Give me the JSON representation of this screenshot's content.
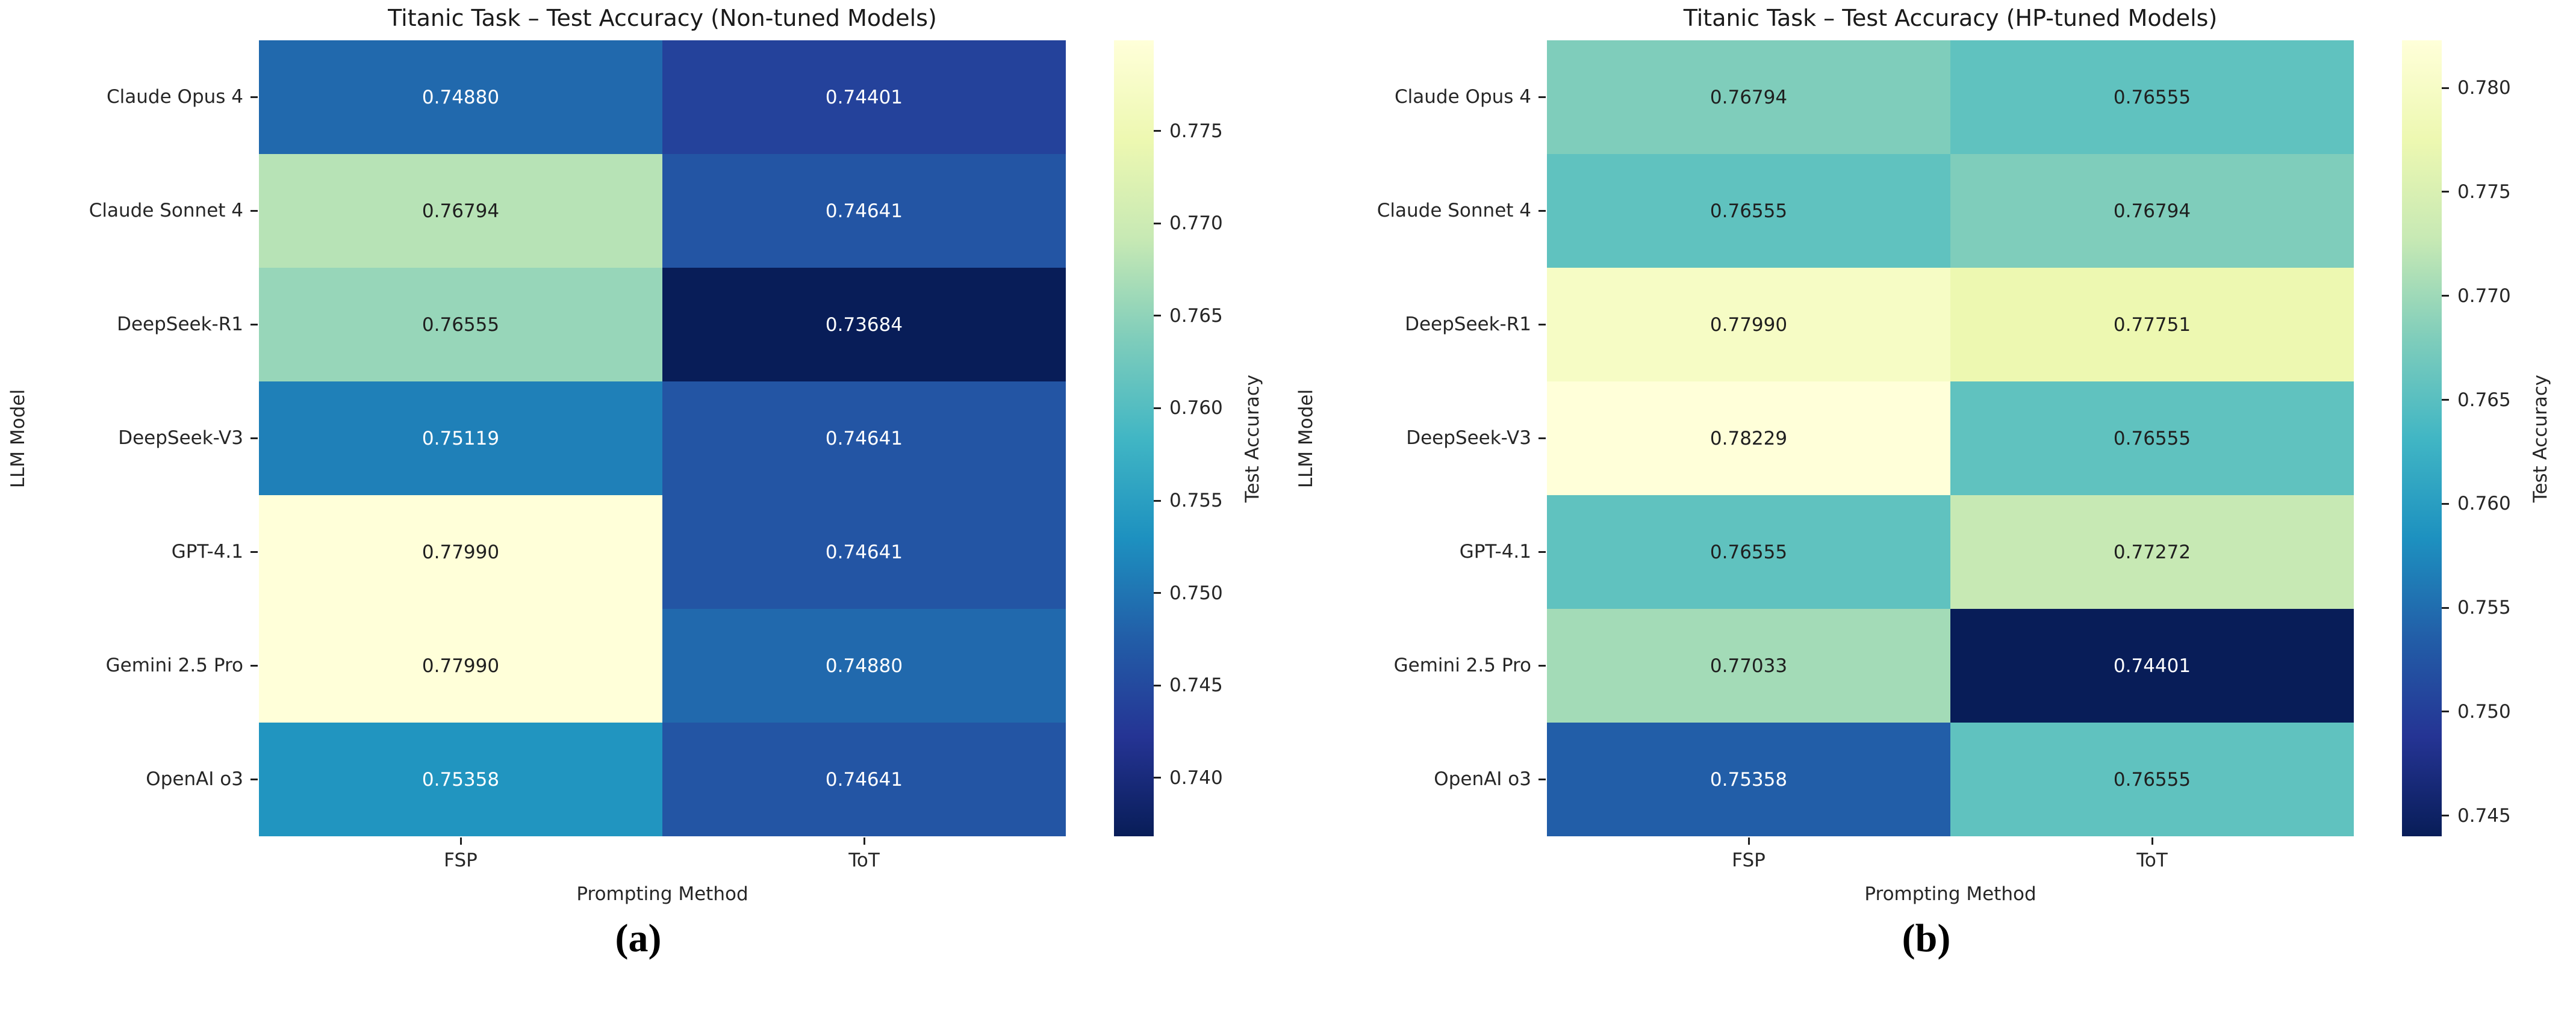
{
  "figure": {
    "background": "#ffffff",
    "colormap": "YlGnBu_r",
    "colormap_colors": [
      "#ffffd9",
      "#edf8b1",
      "#c7e9b4",
      "#7fcdbb",
      "#41b6c4",
      "#1d91c0",
      "#225ea8",
      "#253494",
      "#081d58"
    ],
    "annot_dark_text_color": "#1f1f1f",
    "annot_light_text_color": "#ffffff"
  },
  "chart_data": [
    {
      "type": "heatmap",
      "panel": "a",
      "caption": "(a)",
      "title": "Titanic Task – Test Accuracy (Non-tuned Models)",
      "xlabel": "Prompting Method",
      "ylabel": "LLM Model",
      "columns": [
        "FSP",
        "ToT"
      ],
      "rows": [
        "Claude Opus 4",
        "Claude Sonnet 4",
        "DeepSeek-R1",
        "DeepSeek-V3",
        "GPT-4.1",
        "Gemini 2.5 Pro",
        "OpenAI o3"
      ],
      "values": [
        [
          0.7488,
          0.74401
        ],
        [
          0.76794,
          0.74641
        ],
        [
          0.76555,
          0.73684
        ],
        [
          0.75119,
          0.74641
        ],
        [
          0.7799,
          0.74641
        ],
        [
          0.7799,
          0.7488
        ],
        [
          0.75358,
          0.74641
        ]
      ],
      "value_format_decimals": 5,
      "colorbar": {
        "label": "Test Accuracy",
        "ticks": [
          0.775,
          0.77,
          0.765,
          0.76,
          0.755,
          0.75,
          0.745,
          0.74
        ],
        "tick_format_decimals": 3,
        "vmin": 0.73684,
        "vmax": 0.7799
      }
    },
    {
      "type": "heatmap",
      "panel": "b",
      "caption": "(b)",
      "title": "Titanic Task – Test Accuracy (HP-tuned Models)",
      "xlabel": "Prompting Method",
      "ylabel": "LLM Model",
      "columns": [
        "FSP",
        "ToT"
      ],
      "rows": [
        "Claude Opus 4",
        "Claude Sonnet 4",
        "DeepSeek-R1",
        "DeepSeek-V3",
        "GPT-4.1",
        "Gemini 2.5 Pro",
        "OpenAI o3"
      ],
      "values": [
        [
          0.76794,
          0.76555
        ],
        [
          0.76555,
          0.76794
        ],
        [
          0.7799,
          0.77751
        ],
        [
          0.78229,
          0.76555
        ],
        [
          0.76555,
          0.77272
        ],
        [
          0.77033,
          0.74401
        ],
        [
          0.75358,
          0.76555
        ]
      ],
      "value_format_decimals": 5,
      "colorbar": {
        "label": "Test Accuracy",
        "ticks": [
          0.78,
          0.775,
          0.77,
          0.765,
          0.76,
          0.755,
          0.75,
          0.745
        ],
        "tick_format_decimals": 3,
        "vmin": 0.74401,
        "vmax": 0.78229
      }
    }
  ]
}
